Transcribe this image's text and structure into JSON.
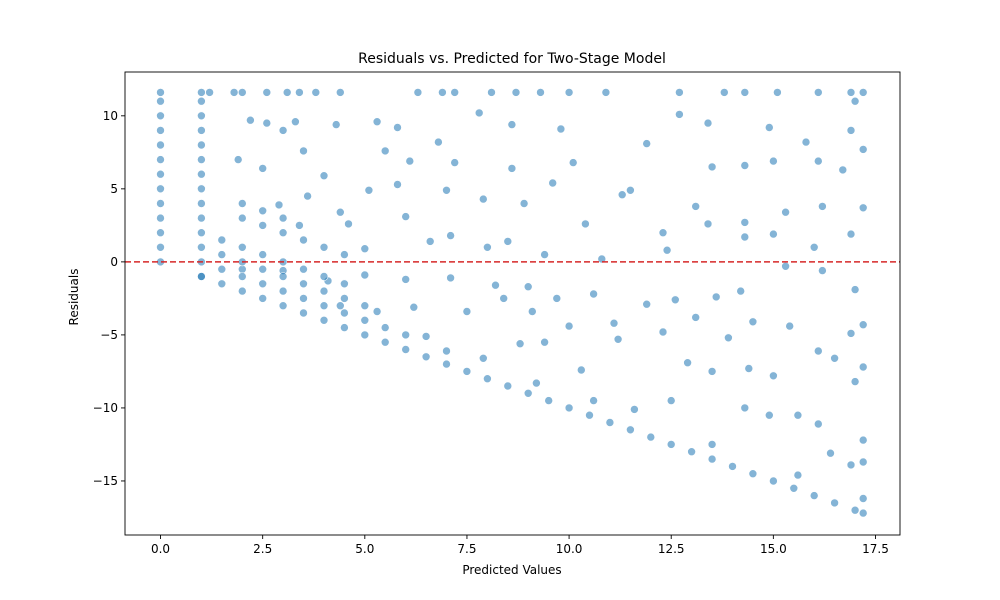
{
  "colors": {
    "point": "#1f77b4",
    "zero_line": "#d62728",
    "axis": "#000000"
  },
  "chart_data": {
    "type": "scatter",
    "title": "Residuals vs. Predicted for Two-Stage Model",
    "xlabel": "Predicted Values",
    "ylabel": "Residuals",
    "xlim": [
      -0.87,
      18.1
    ],
    "ylim": [
      -18.7,
      13.0
    ],
    "xticks": [
      0,
      2.5,
      5,
      7.5,
      10,
      12.5,
      15,
      17.5
    ],
    "xtick_labels": [
      "0.0",
      "2.5",
      "5.0",
      "7.5",
      "10.0",
      "12.5",
      "15.0",
      "17.5"
    ],
    "yticks": [
      -15,
      -10,
      -5,
      0,
      5,
      10
    ],
    "ytick_labels": [
      "−15",
      "−10",
      "−5",
      "0",
      "5",
      "10"
    ],
    "grid": false,
    "reference_line": {
      "y": 0,
      "style": "dashed"
    },
    "marker_alpha": 0.55,
    "series": [
      {
        "points": [
          [
            0,
            0
          ],
          [
            0,
            1
          ],
          [
            0,
            2
          ],
          [
            0,
            3
          ],
          [
            0,
            4
          ],
          [
            0,
            5
          ],
          [
            0,
            6
          ],
          [
            0,
            7
          ],
          [
            0,
            8
          ],
          [
            0,
            9
          ],
          [
            0,
            10
          ],
          [
            0,
            11
          ],
          [
            0,
            11.6
          ],
          [
            1,
            -1
          ],
          [
            1,
            0
          ],
          [
            1,
            1
          ],
          [
            1,
            2
          ],
          [
            1,
            3
          ],
          [
            1,
            4
          ],
          [
            1,
            5
          ],
          [
            1,
            6
          ],
          [
            1,
            7
          ],
          [
            1,
            8
          ],
          [
            1,
            9
          ],
          [
            1,
            10
          ],
          [
            1,
            11
          ],
          [
            1,
            11.6
          ],
          [
            1.2,
            11.6
          ],
          [
            1.8,
            11.6
          ],
          [
            2.0,
            11.6
          ],
          [
            2.6,
            11.6
          ],
          [
            3.1,
            11.6
          ],
          [
            3.4,
            11.6
          ],
          [
            3.8,
            11.6
          ],
          [
            4.4,
            11.6
          ],
          [
            6.3,
            11.6
          ],
          [
            6.9,
            11.6
          ],
          [
            7.2,
            11.6
          ],
          [
            8.1,
            11.6
          ],
          [
            8.7,
            11.6
          ],
          [
            9.3,
            11.6
          ],
          [
            10.0,
            11.6
          ],
          [
            10.9,
            11.6
          ],
          [
            12.7,
            11.6
          ],
          [
            13.8,
            11.6
          ],
          [
            14.3,
            11.6
          ],
          [
            15.1,
            11.6
          ],
          [
            16.1,
            11.6
          ],
          [
            16.9,
            11.6
          ],
          [
            17.2,
            11.6
          ],
          [
            2.2,
            9.7
          ],
          [
            2.6,
            9.5
          ],
          [
            3.0,
            9.0
          ],
          [
            3.3,
            9.6
          ],
          [
            4.3,
            9.4
          ],
          [
            5.3,
            9.6
          ],
          [
            7.8,
            10.2
          ],
          [
            12.7,
            10.1
          ],
          [
            17.0,
            11.0
          ],
          [
            17.2,
            7.7
          ],
          [
            16.9,
            9.0
          ],
          [
            15.8,
            8.2
          ],
          [
            14.9,
            9.2
          ],
          [
            13.4,
            9.5
          ],
          [
            11.9,
            8.1
          ],
          [
            9.8,
            9.1
          ],
          [
            8.6,
            9.4
          ],
          [
            5.8,
            9.2
          ],
          [
            1.9,
            7.0
          ],
          [
            2.5,
            6.4
          ],
          [
            3.5,
            7.6
          ],
          [
            4.0,
            5.9
          ],
          [
            5.5,
            7.6
          ],
          [
            6.1,
            6.9
          ],
          [
            6.8,
            8.2
          ],
          [
            7.2,
            6.8
          ],
          [
            8.6,
            6.4
          ],
          [
            10.1,
            6.8
          ],
          [
            11.5,
            4.9
          ],
          [
            13.5,
            6.5
          ],
          [
            14.3,
            6.6
          ],
          [
            15.0,
            6.9
          ],
          [
            16.1,
            6.9
          ],
          [
            16.7,
            6.3
          ],
          [
            2.9,
            3.9
          ],
          [
            3.6,
            4.5
          ],
          [
            4.4,
            3.4
          ],
          [
            5.1,
            4.9
          ],
          [
            5.8,
            5.3
          ],
          [
            7.0,
            4.9
          ],
          [
            7.9,
            4.3
          ],
          [
            8.9,
            4.0
          ],
          [
            9.6,
            5.4
          ],
          [
            10.4,
            2.6
          ],
          [
            11.3,
            4.6
          ],
          [
            12.3,
            2.0
          ],
          [
            13.1,
            3.8
          ],
          [
            14.3,
            2.7
          ],
          [
            15.3,
            3.4
          ],
          [
            16.2,
            3.8
          ],
          [
            17.2,
            3.7
          ],
          [
            3.4,
            2.5
          ],
          [
            4.6,
            2.6
          ],
          [
            5.0,
            0.9
          ],
          [
            6.0,
            3.1
          ],
          [
            6.6,
            1.4
          ],
          [
            7.1,
            1.8
          ],
          [
            8.0,
            1.0
          ],
          [
            8.5,
            1.4
          ],
          [
            9.4,
            0.5
          ],
          [
            10.8,
            0.2
          ],
          [
            12.4,
            0.8
          ],
          [
            13.4,
            2.6
          ],
          [
            14.3,
            1.7
          ],
          [
            15.0,
            1.9
          ],
          [
            16.0,
            1.0
          ],
          [
            16.9,
            1.9
          ],
          [
            2.0,
            -0.5
          ],
          [
            3.0,
            -0.6
          ],
          [
            4.1,
            -1.3
          ],
          [
            5.0,
            -0.9
          ],
          [
            6.0,
            -1.2
          ],
          [
            7.1,
            -1.1
          ],
          [
            8.2,
            -1.6
          ],
          [
            9.0,
            -1.7
          ],
          [
            9.7,
            -2.5
          ],
          [
            10.6,
            -2.2
          ],
          [
            11.9,
            -2.9
          ],
          [
            12.6,
            -2.6
          ],
          [
            13.6,
            -2.4
          ],
          [
            14.2,
            -2.0
          ],
          [
            15.3,
            -0.3
          ],
          [
            16.2,
            -0.6
          ],
          [
            17.0,
            -1.9
          ],
          [
            4.4,
            -3.0
          ],
          [
            5.3,
            -3.4
          ],
          [
            6.2,
            -3.1
          ],
          [
            7.5,
            -3.4
          ],
          [
            8.4,
            -2.5
          ],
          [
            9.1,
            -3.4
          ],
          [
            10.0,
            -4.4
          ],
          [
            11.1,
            -4.2
          ],
          [
            12.3,
            -4.8
          ],
          [
            13.1,
            -3.8
          ],
          [
            13.9,
            -5.2
          ],
          [
            14.5,
            -4.1
          ],
          [
            15.4,
            -4.4
          ],
          [
            16.1,
            -6.1
          ],
          [
            16.9,
            -4.9
          ],
          [
            17.2,
            -4.3
          ],
          [
            6.5,
            -5.1
          ],
          [
            7.0,
            -6.1
          ],
          [
            7.9,
            -6.6
          ],
          [
            8.8,
            -5.6
          ],
          [
            9.4,
            -5.5
          ],
          [
            10.3,
            -7.4
          ],
          [
            11.2,
            -5.3
          ],
          [
            12.9,
            -6.9
          ],
          [
            13.5,
            -7.5
          ],
          [
            14.4,
            -7.3
          ],
          [
            15.0,
            -7.8
          ],
          [
            16.5,
            -6.6
          ],
          [
            17.2,
            -7.2
          ],
          [
            17.0,
            -8.2
          ],
          [
            9.2,
            -8.3
          ],
          [
            10.6,
            -9.5
          ],
          [
            11.6,
            -10.1
          ],
          [
            12.5,
            -9.5
          ],
          [
            13.5,
            -12.5
          ],
          [
            14.3,
            -10.0
          ],
          [
            14.9,
            -10.5
          ],
          [
            15.6,
            -10.5
          ],
          [
            16.1,
            -11.1
          ],
          [
            16.4,
            -13.1
          ],
          [
            16.9,
            -13.9
          ],
          [
            17.2,
            -12.2
          ],
          [
            17.2,
            -13.7
          ],
          [
            17.2,
            -16.2
          ],
          [
            15.6,
            -14.6
          ],
          [
            1.0,
            -1.0
          ],
          [
            1.5,
            -1.5
          ],
          [
            2.0,
            -2.0
          ],
          [
            2.5,
            -2.5
          ],
          [
            3.0,
            -3.0
          ],
          [
            3.5,
            -3.5
          ],
          [
            4.0,
            -4.0
          ],
          [
            4.5,
            -4.5
          ],
          [
            5.0,
            -5.0
          ],
          [
            5.5,
            -5.5
          ],
          [
            6.0,
            -6.0
          ],
          [
            6.5,
            -6.5
          ],
          [
            7.0,
            -7.0
          ],
          [
            7.5,
            -7.5
          ],
          [
            8.0,
            -8.0
          ],
          [
            8.5,
            -8.5
          ],
          [
            9.0,
            -9.0
          ],
          [
            9.5,
            -9.5
          ],
          [
            10.0,
            -10.0
          ],
          [
            10.5,
            -10.5
          ],
          [
            11.0,
            -11.0
          ],
          [
            11.5,
            -11.5
          ],
          [
            12.0,
            -12.0
          ],
          [
            12.5,
            -12.5
          ],
          [
            13.0,
            -13.0
          ],
          [
            13.5,
            -13.5
          ],
          [
            14.0,
            -14.0
          ],
          [
            14.5,
            -14.5
          ],
          [
            15.0,
            -15.0
          ],
          [
            15.5,
            -15.5
          ],
          [
            16.0,
            -16.0
          ],
          [
            16.5,
            -16.5
          ],
          [
            17.0,
            -17.0
          ],
          [
            17.2,
            -17.2
          ],
          [
            1.5,
            -0.5
          ],
          [
            2.0,
            -1.0
          ],
          [
            2.5,
            -1.5
          ],
          [
            3.0,
            -2.0
          ],
          [
            3.5,
            -2.5
          ],
          [
            4.0,
            -3.0
          ],
          [
            4.5,
            -3.5
          ],
          [
            5.0,
            -4.0
          ],
          [
            5.5,
            -4.5
          ],
          [
            6.0,
            -5.0
          ],
          [
            1.5,
            0.5
          ],
          [
            2.0,
            0.0
          ],
          [
            2.5,
            -0.5
          ],
          [
            3.0,
            -1.0
          ],
          [
            3.5,
            -1.5
          ],
          [
            4.0,
            -2.0
          ],
          [
            4.5,
            -2.5
          ],
          [
            5.0,
            -3.0
          ],
          [
            1.5,
            1.5
          ],
          [
            2.0,
            1.0
          ],
          [
            2.5,
            0.5
          ],
          [
            3.0,
            0.0
          ],
          [
            3.5,
            -0.5
          ],
          [
            4.0,
            -1.0
          ],
          [
            4.5,
            -1.5
          ],
          [
            2.0,
            3.0
          ],
          [
            2.5,
            2.5
          ],
          [
            3.0,
            2.0
          ],
          [
            3.5,
            1.5
          ],
          [
            4.0,
            1.0
          ],
          [
            4.5,
            0.5
          ],
          [
            2.0,
            4.0
          ],
          [
            2.5,
            3.5
          ],
          [
            3.0,
            3.0
          ]
        ]
      }
    ]
  }
}
